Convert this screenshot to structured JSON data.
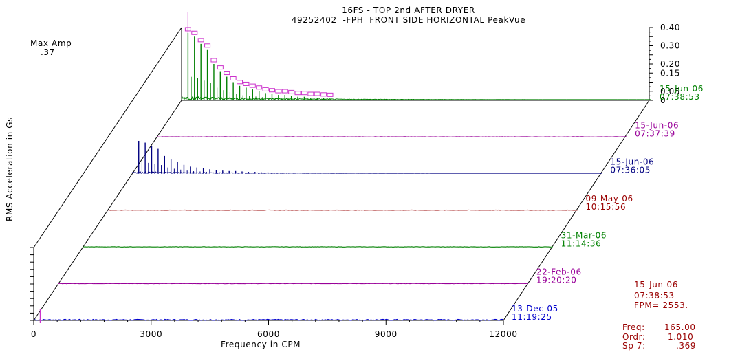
{
  "title_line1": "16FS - TOP 2nd AFTER DRYER",
  "title_line2": "49252402  -FPH  FRONT SIDE HORIZONTAL PeakVue",
  "max_amp_label": "Max Amp",
  "max_amp_value": ".37",
  "ylabel": "RMS Acceleration in Gs",
  "xlabel": "Frequency in CPM",
  "cursor_info": {
    "date": "15-Jun-06",
    "time": "07:38:53",
    "fpm": "FPM= 2553."
  },
  "readout": {
    "freq_label": "Freq:",
    "freq_value": "165.00",
    "ordr_label": "Ordr:",
    "ordr_value": "1.010",
    "sp_label": "Sp 7:",
    "sp_value": ".369"
  },
  "colors": {
    "green": "#008000",
    "purple": "#990099",
    "navy": "#000080",
    "darkred": "#990000",
    "blue": "#0000cc",
    "magenta": "#cc33cc"
  },
  "chart_data": {
    "type": "line",
    "subtype": "waterfall",
    "title": "16FS - TOP 2nd AFTER DRYER",
    "subtitle": "49252402  -FPH  FRONT SIDE HORIZONTAL PeakVue",
    "xlabel": "Frequency in CPM",
    "ylabel": "RMS Acceleration in Gs",
    "xlim": [
      0,
      12000
    ],
    "ylim": [
      0,
      0.4
    ],
    "xticks": [
      "0",
      "3000",
      "6000",
      "9000",
      "12000"
    ],
    "yticks": [
      "0",
      "0.05",
      "0.15",
      "0.20",
      "0.30",
      "0.40"
    ],
    "series": [
      {
        "date": "13-Dec-05",
        "time": "11:19:25",
        "color": "#0000cc",
        "peak_amp": 0.005
      },
      {
        "date": "22-Feb-06",
        "time": "19:20:20",
        "color": "#990099",
        "peak_amp": 0.0
      },
      {
        "date": "31-Mar-06",
        "time": "11:14:36",
        "color": "#008000",
        "peak_amp": 0.0
      },
      {
        "date": "09-May-06",
        "time": "10:15:56",
        "color": "#990000",
        "peak_amp": 0.0
      },
      {
        "date": "15-Jun-06",
        "time": "07:36:05",
        "color": "#000080",
        "peak_amp": 0.18
      },
      {
        "date": "15-Jun-06",
        "time": "07:37:39",
        "color": "#990099",
        "peak_amp": 0.0
      },
      {
        "date": "15-Jun-06",
        "time": "07:38:53",
        "color": "#008000",
        "peak_amp": 0.37
      }
    ],
    "front_spectrum": {
      "fundamental_cpm": 165,
      "harmonic_peaks_gs": [
        0.37,
        0.35,
        0.31,
        0.28,
        0.2,
        0.16,
        0.13,
        0.1,
        0.08,
        0.07,
        0.06,
        0.05,
        0.04,
        0.035,
        0.03,
        0.03,
        0.025,
        0.02,
        0.02,
        0.015,
        0.015,
        0.012,
        0.01
      ]
    }
  }
}
